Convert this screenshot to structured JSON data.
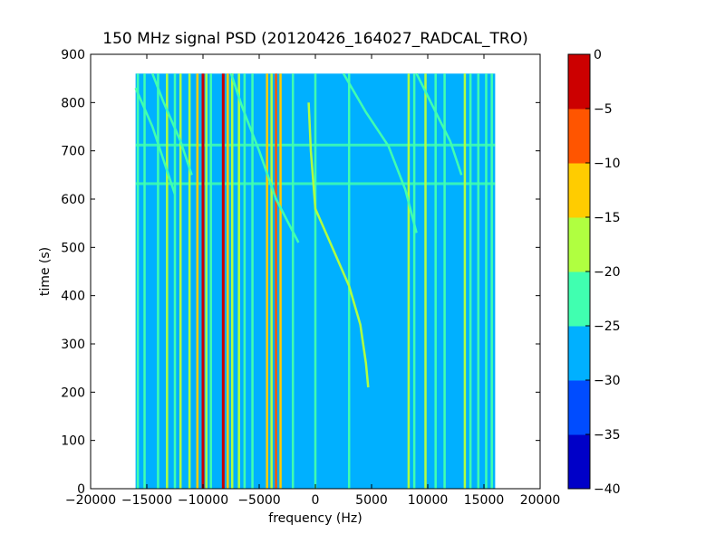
{
  "chart_data": {
    "type": "heatmap",
    "title": "150 MHz signal PSD (20120426_164027_RADCAL_TRO)",
    "xlabel": "frequency (Hz)",
    "ylabel": "time (s)",
    "xlim": [
      -20000,
      20000
    ],
    "ylim": [
      0,
      900
    ],
    "xticks": [
      "−20000",
      "−15000",
      "−10000",
      "−5000",
      "0",
      "5000",
      "10000",
      "15000",
      "20000"
    ],
    "yticks": [
      "0",
      "100",
      "200",
      "300",
      "400",
      "500",
      "600",
      "700",
      "800",
      "900"
    ],
    "data_extent": {
      "freq": [
        -16000,
        16000
      ],
      "time": [
        0,
        860
      ]
    },
    "background_level": -27.5,
    "colorbar": {
      "levels": [
        -40,
        -35,
        -30,
        -25,
        -20,
        -15,
        -10,
        -5,
        0
      ],
      "tick_labels": [
        "−40",
        "−35",
        "−30",
        "−25",
        "−20",
        "−15",
        "−10",
        "−5",
        "0"
      ],
      "colors": [
        "#0000c8",
        "#004cff",
        "#00b0ff",
        "#40ffb0",
        "#b0ff40",
        "#ffcc00",
        "#ff5500",
        "#cc0000"
      ]
    },
    "vertical_lines": [
      {
        "freq": -15800,
        "level": -22
      },
      {
        "freq": -15200,
        "level": -22
      },
      {
        "freq": -14000,
        "level": -22
      },
      {
        "freq": -13200,
        "level": -18
      },
      {
        "freq": -12500,
        "level": -22
      },
      {
        "freq": -12000,
        "level": -18
      },
      {
        "freq": -11200,
        "level": -18
      },
      {
        "freq": -10500,
        "level": -13
      },
      {
        "freq": -10000,
        "level": -2
      },
      {
        "freq": -9700,
        "level": -18
      },
      {
        "freq": -9300,
        "level": -22
      },
      {
        "freq": -8200,
        "level": -2
      },
      {
        "freq": -7800,
        "level": -13
      },
      {
        "freq": -7400,
        "level": -18
      },
      {
        "freq": -6800,
        "level": -18
      },
      {
        "freq": -6300,
        "level": -22
      },
      {
        "freq": -5600,
        "level": -22
      },
      {
        "freq": -4300,
        "level": -13
      },
      {
        "freq": -3900,
        "level": -18
      },
      {
        "freq": -3500,
        "level": -7
      },
      {
        "freq": -3100,
        "level": -13
      },
      {
        "freq": -2000,
        "level": -22
      },
      {
        "freq": 0,
        "level": -22
      },
      {
        "freq": 3000,
        "level": -22
      },
      {
        "freq": 8300,
        "level": -18
      },
      {
        "freq": 8800,
        "level": -22
      },
      {
        "freq": 9800,
        "level": -18
      },
      {
        "freq": 10700,
        "level": -22
      },
      {
        "freq": 11500,
        "level": -22
      },
      {
        "freq": 13300,
        "level": -18
      },
      {
        "freq": 13800,
        "level": -22
      },
      {
        "freq": 14500,
        "level": -22
      },
      {
        "freq": 15200,
        "level": -22
      },
      {
        "freq": 15700,
        "level": -22
      }
    ],
    "horizontal_bands": [
      {
        "time": 632,
        "level": -22
      },
      {
        "time": 712,
        "level": -22
      }
    ],
    "drift_curves": [
      {
        "level": -18,
        "points": [
          [
            4700,
            210
          ],
          [
            4500,
            260
          ],
          [
            4000,
            340
          ],
          [
            3000,
            420
          ],
          [
            1500,
            500
          ],
          [
            0,
            580
          ],
          [
            -400,
            700
          ],
          [
            -600,
            800
          ]
        ]
      },
      {
        "level": -22,
        "points": [
          [
            -16000,
            830
          ],
          [
            -14500,
            750
          ],
          [
            -13500,
            680
          ],
          [
            -12500,
            610
          ]
        ]
      },
      {
        "level": -22,
        "points": [
          [
            -14500,
            860
          ],
          [
            -13500,
            800
          ],
          [
            -12000,
            720
          ],
          [
            -11000,
            650
          ]
        ]
      },
      {
        "level": -22,
        "points": [
          [
            -7500,
            860
          ],
          [
            -6500,
            790
          ],
          [
            -5000,
            700
          ],
          [
            -3500,
            600
          ],
          [
            -1500,
            510
          ]
        ]
      },
      {
        "level": -22,
        "points": [
          [
            2500,
            860
          ],
          [
            4500,
            780
          ],
          [
            6500,
            710
          ],
          [
            8000,
            620
          ],
          [
            9000,
            530
          ]
        ]
      },
      {
        "level": -22,
        "points": [
          [
            9000,
            860
          ],
          [
            10500,
            790
          ],
          [
            12000,
            720
          ],
          [
            13000,
            650
          ]
        ]
      }
    ]
  }
}
